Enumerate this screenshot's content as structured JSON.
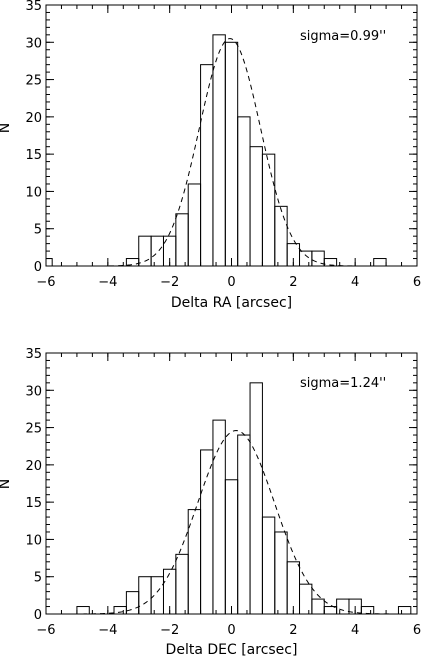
{
  "chart_data": [
    {
      "type": "histogram",
      "bin_width": 0.4,
      "xlim": [
        -6,
        6
      ],
      "ylim": [
        0,
        35
      ],
      "xticks": [
        "−6",
        "−4",
        "−2",
        "0",
        "2",
        "4",
        "6"
      ],
      "yticks": [
        "0",
        "5",
        "10",
        "15",
        "20",
        "25",
        "30",
        "35"
      ],
      "xlabel": "Delta RA [arcsec]",
      "ylabel": "N",
      "annotation": "sigma=0.99''",
      "bins": [
        {
          "x0": -6.2,
          "x1": -5.8,
          "count": 1
        },
        {
          "x0": -3.4,
          "x1": -3.0,
          "count": 1
        },
        {
          "x0": -3.0,
          "x1": -2.6,
          "count": 4
        },
        {
          "x0": -2.6,
          "x1": -2.2,
          "count": 4
        },
        {
          "x0": -2.2,
          "x1": -1.8,
          "count": 4
        },
        {
          "x0": -1.8,
          "x1": -1.4,
          "count": 7
        },
        {
          "x0": -1.4,
          "x1": -1.0,
          "count": 11
        },
        {
          "x0": -1.0,
          "x1": -0.6,
          "count": 27
        },
        {
          "x0": -0.6,
          "x1": -0.2,
          "count": 31
        },
        {
          "x0": -0.2,
          "x1": 0.2,
          "count": 30
        },
        {
          "x0": 0.2,
          "x1": 0.6,
          "count": 20
        },
        {
          "x0": 0.6,
          "x1": 1.0,
          "count": 16
        },
        {
          "x0": 1.0,
          "x1": 1.4,
          "count": 15
        },
        {
          "x0": 1.4,
          "x1": 1.8,
          "count": 8
        },
        {
          "x0": 1.8,
          "x1": 2.2,
          "count": 3
        },
        {
          "x0": 2.2,
          "x1": 2.6,
          "count": 2
        },
        {
          "x0": 2.6,
          "x1": 3.0,
          "count": 2
        },
        {
          "x0": 3.0,
          "x1": 3.4,
          "count": 1
        },
        {
          "x0": 4.6,
          "x1": 5.0,
          "count": 1
        }
      ],
      "gaussian": {
        "amplitude": 30.5,
        "mean": -0.05,
        "sigma": 0.99
      }
    },
    {
      "type": "histogram",
      "bin_width": 0.4,
      "xlim": [
        -6,
        6
      ],
      "ylim": [
        0,
        35
      ],
      "xticks": [
        "−6",
        "−4",
        "−2",
        "0",
        "2",
        "4",
        "6"
      ],
      "yticks": [
        "0",
        "5",
        "10",
        "15",
        "20",
        "25",
        "30",
        "35"
      ],
      "xlabel": "Delta DEC [arcsec]",
      "ylabel": "N",
      "annotation": "sigma=1.24''",
      "bins": [
        {
          "x0": -5.0,
          "x1": -4.6,
          "count": 1
        },
        {
          "x0": -3.8,
          "x1": -3.4,
          "count": 1
        },
        {
          "x0": -3.4,
          "x1": -3.0,
          "count": 3
        },
        {
          "x0": -3.0,
          "x1": -2.6,
          "count": 5
        },
        {
          "x0": -2.6,
          "x1": -2.2,
          "count": 5
        },
        {
          "x0": -2.2,
          "x1": -1.8,
          "count": 6
        },
        {
          "x0": -1.8,
          "x1": -1.4,
          "count": 8
        },
        {
          "x0": -1.4,
          "x1": -1.0,
          "count": 14
        },
        {
          "x0": -1.0,
          "x1": -0.6,
          "count": 22
        },
        {
          "x0": -0.6,
          "x1": -0.2,
          "count": 26
        },
        {
          "x0": -0.2,
          "x1": 0.2,
          "count": 18
        },
        {
          "x0": 0.2,
          "x1": 0.6,
          "count": 24
        },
        {
          "x0": 0.6,
          "x1": 1.0,
          "count": 31
        },
        {
          "x0": 1.0,
          "x1": 1.4,
          "count": 13
        },
        {
          "x0": 1.4,
          "x1": 1.8,
          "count": 11
        },
        {
          "x0": 1.8,
          "x1": 2.2,
          "count": 7
        },
        {
          "x0": 2.2,
          "x1": 2.6,
          "count": 4
        },
        {
          "x0": 2.6,
          "x1": 3.0,
          "count": 2
        },
        {
          "x0": 3.0,
          "x1": 3.4,
          "count": 1
        },
        {
          "x0": 3.4,
          "x1": 3.8,
          "count": 2
        },
        {
          "x0": 3.8,
          "x1": 4.2,
          "count": 2
        },
        {
          "x0": 4.2,
          "x1": 4.6,
          "count": 1
        },
        {
          "x0": 5.4,
          "x1": 5.8,
          "count": 1
        }
      ],
      "gaussian": {
        "amplitude": 24.6,
        "mean": 0.15,
        "sigma": 1.24
      }
    }
  ]
}
